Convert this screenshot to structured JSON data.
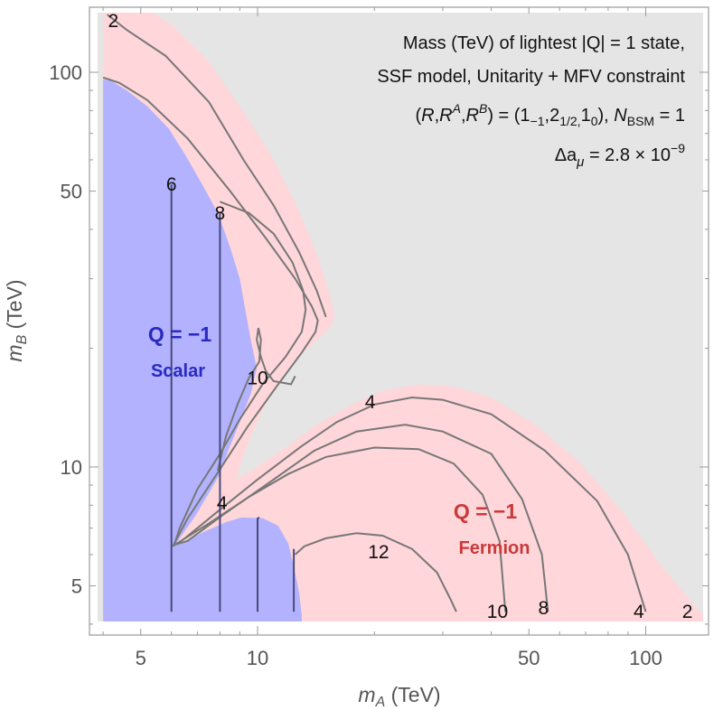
{
  "chart_data": {
    "type": "contour",
    "title": "Mass (TeV) of lightest |Q| = 1 state,",
    "subtitle_lines": [
      "SSF model, Unitarity + MFV constraint",
      "(R,R^A,R^B) = (1_{−1},2_{1/2,}1_0), N_BSM = 1",
      "Δa_μ = 2.8 × 10^−9"
    ],
    "xlabel": "m_A (TeV)",
    "ylabel": "m_B (TeV)",
    "xscale": "log",
    "yscale": "log",
    "xlim": [
      4,
      150
    ],
    "ylim": [
      4,
      150
    ],
    "xticks": [
      5,
      10,
      50,
      100
    ],
    "yticks": [
      5,
      10,
      50,
      100
    ],
    "colors": {
      "background": "#e5e5e5",
      "fermion_region": "#ffd6d9",
      "scalar_region": "#b2b2ff",
      "contour": "#777777",
      "contour_scalar": "#4a4a7a",
      "scalar_text": "#2a2abf",
      "fermion_text": "#c83a3a"
    },
    "regions": [
      {
        "name": "Q = −1 Scalar",
        "title": "Q = −1",
        "subtitle": "Scalar"
      },
      {
        "name": "Q = −1 Fermion",
        "title": "Q = −1",
        "subtitle": "Fermion"
      }
    ],
    "contours": [
      {
        "level": 2,
        "points": [
          [
            4.1,
            140
          ],
          [
            4.6,
            128
          ],
          [
            5.8,
            110
          ],
          [
            7.5,
            84
          ],
          [
            9.2,
            60
          ],
          [
            11,
            46
          ],
          [
            12.8,
            35
          ],
          [
            14.2,
            28
          ],
          [
            15,
            24
          ]
        ]
      },
      {
        "level": 4,
        "points": [
          [
            4,
            97
          ],
          [
            4.4,
            94
          ],
          [
            5.2,
            85
          ],
          [
            6.6,
            68
          ],
          [
            8.5,
            50
          ],
          [
            10.5,
            38
          ],
          [
            12.5,
            30
          ],
          [
            13.8,
            25.5
          ],
          [
            14.3,
            23.5
          ],
          [
            14.1,
            22
          ],
          [
            13,
            19.5
          ],
          [
            11.2,
            16
          ],
          [
            9.4,
            12.6
          ],
          [
            7.8,
            9.5
          ],
          [
            6.6,
            7.4
          ],
          [
            6.05,
            6.3
          ],
          [
            6.5,
            6.6
          ],
          [
            8,
            7.8
          ],
          [
            10,
            9.3
          ],
          [
            13,
            11.3
          ],
          [
            16,
            13
          ],
          [
            20,
            14.4
          ],
          [
            25,
            15
          ],
          [
            30,
            14.8
          ],
          [
            40,
            13.6
          ],
          [
            55,
            11
          ],
          [
            75,
            8.2
          ],
          [
            90,
            6
          ],
          [
            100,
            4.3
          ]
        ]
      },
      {
        "level": 8,
        "points": [
          [
            8,
            47
          ],
          [
            9.5,
            44
          ],
          [
            11,
            39
          ],
          [
            12.3,
            33
          ],
          [
            13.1,
            28
          ],
          [
            13.3,
            25
          ],
          [
            13,
            22
          ],
          [
            11.8,
            19
          ],
          [
            10.3,
            16.2
          ],
          [
            9,
            13.2
          ],
          [
            8,
            10.8
          ],
          [
            7,
            8.8
          ],
          [
            6.3,
            7
          ],
          [
            6.1,
            6.35
          ],
          [
            6.6,
            6.5
          ],
          [
            8.2,
            7.6
          ],
          [
            10.5,
            9
          ],
          [
            14,
            11
          ],
          [
            18,
            12.3
          ],
          [
            24,
            12.8
          ],
          [
            30,
            12.3
          ],
          [
            40,
            10.8
          ],
          [
            48,
            8.3
          ],
          [
            54,
            6
          ],
          [
            56,
            4.3
          ]
        ]
      },
      {
        "level": 10,
        "points": [
          [
            7.9,
            9.8
          ],
          [
            8.3,
            12
          ],
          [
            8.9,
            14.5
          ],
          [
            9.5,
            16.8
          ],
          [
            10.1,
            18.5
          ],
          [
            10.2,
            21
          ],
          [
            10.05,
            22.5
          ],
          [
            9.95,
            21
          ],
          [
            10.2,
            19
          ],
          [
            10.5,
            17.5
          ],
          [
            11,
            16.5
          ],
          [
            12.2,
            16.2
          ],
          [
            12.5,
            17
          ]
        ]
      },
      {
        "level": 10,
        "points": [
          [
            6.2,
            6.4
          ],
          [
            7.5,
            7.2
          ],
          [
            9.5,
            8.4
          ],
          [
            12,
            9.6
          ],
          [
            15,
            10.6
          ],
          [
            20,
            11.2
          ],
          [
            26,
            11.1
          ],
          [
            32,
            10.2
          ],
          [
            38,
            8.5
          ],
          [
            42,
            6.5
          ],
          [
            43.5,
            4.3
          ]
        ]
      },
      {
        "level": 12,
        "points": [
          [
            12.5,
            6
          ],
          [
            13.2,
            6.3
          ],
          [
            15,
            6.6
          ],
          [
            18,
            6.8
          ],
          [
            21,
            6.7
          ],
          [
            25,
            6.2
          ],
          [
            29,
            5.4
          ],
          [
            31.5,
            4.6
          ],
          [
            32.5,
            4.3
          ]
        ]
      }
    ],
    "scalar_contours": [
      {
        "level": 6,
        "points": [
          [
            6,
            4.3
          ],
          [
            6,
            52
          ]
        ]
      },
      {
        "level": 8,
        "points": [
          [
            8,
            4.3
          ],
          [
            8,
            9.2
          ],
          [
            8,
            44
          ]
        ]
      },
      {
        "level": 10,
        "points": [
          [
            10,
            4.3
          ],
          [
            10,
            7.4
          ],
          [
            10.1,
            7.45
          ]
        ]
      },
      {
        "level": 12,
        "points": [
          [
            12.4,
            4.3
          ],
          [
            12.4,
            6.2
          ]
        ]
      }
    ],
    "contour_labels": [
      {
        "text": "2",
        "x": 4.25,
        "y": 135
      },
      {
        "text": "6",
        "x": 6.0,
        "y": 52
      },
      {
        "text": "8",
        "x": 8.0,
        "y": 44
      },
      {
        "text": "10",
        "x": 10.0,
        "y": 16.8
      },
      {
        "text": "4",
        "x": 19.5,
        "y": 14.6
      },
      {
        "text": "4",
        "x": 8.1,
        "y": 8.1
      },
      {
        "text": "12",
        "x": 20.5,
        "y": 6.1
      },
      {
        "text": "10",
        "x": 41.5,
        "y": 4.3
      },
      {
        "text": "8",
        "x": 54.5,
        "y": 4.4
      },
      {
        "text": "4",
        "x": 96,
        "y": 4.3
      },
      {
        "text": "2",
        "x": 128,
        "y": 4.3
      }
    ]
  }
}
